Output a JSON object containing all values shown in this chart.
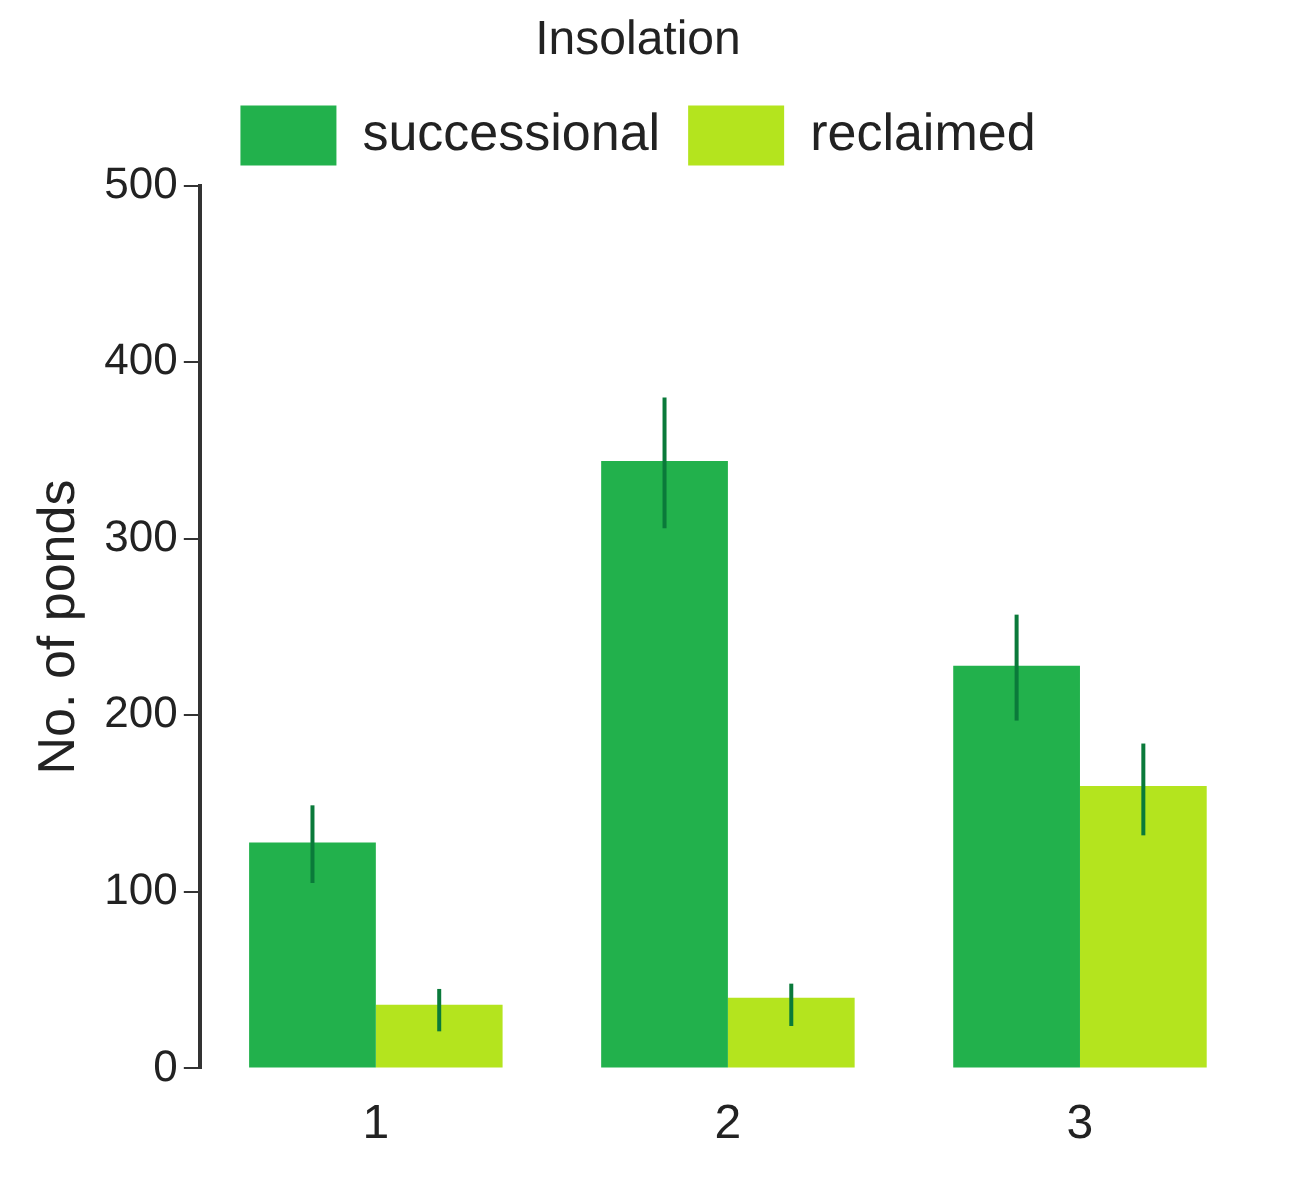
{
  "chart_data": {
    "type": "bar",
    "title": "Insolation",
    "ylabel": "No. of ponds",
    "categories": [
      "1",
      "2",
      "3"
    ],
    "series": [
      {
        "name": "successional",
        "color": "#22b14c",
        "values": [
          128,
          344,
          228
        ],
        "errors": [
          [
            105,
            149
          ],
          [
            306,
            380
          ],
          [
            197,
            257
          ]
        ]
      },
      {
        "name": "reclaimed",
        "color": "#b4e41e",
        "values": [
          36,
          40,
          160
        ],
        "errors": [
          [
            21,
            45
          ],
          [
            24,
            48
          ],
          [
            132,
            184
          ]
        ]
      }
    ],
    "ylim": [
      0,
      500
    ],
    "yticks": [
      0,
      100,
      200,
      300,
      400,
      500
    ],
    "grid": false,
    "legend": "top"
  }
}
